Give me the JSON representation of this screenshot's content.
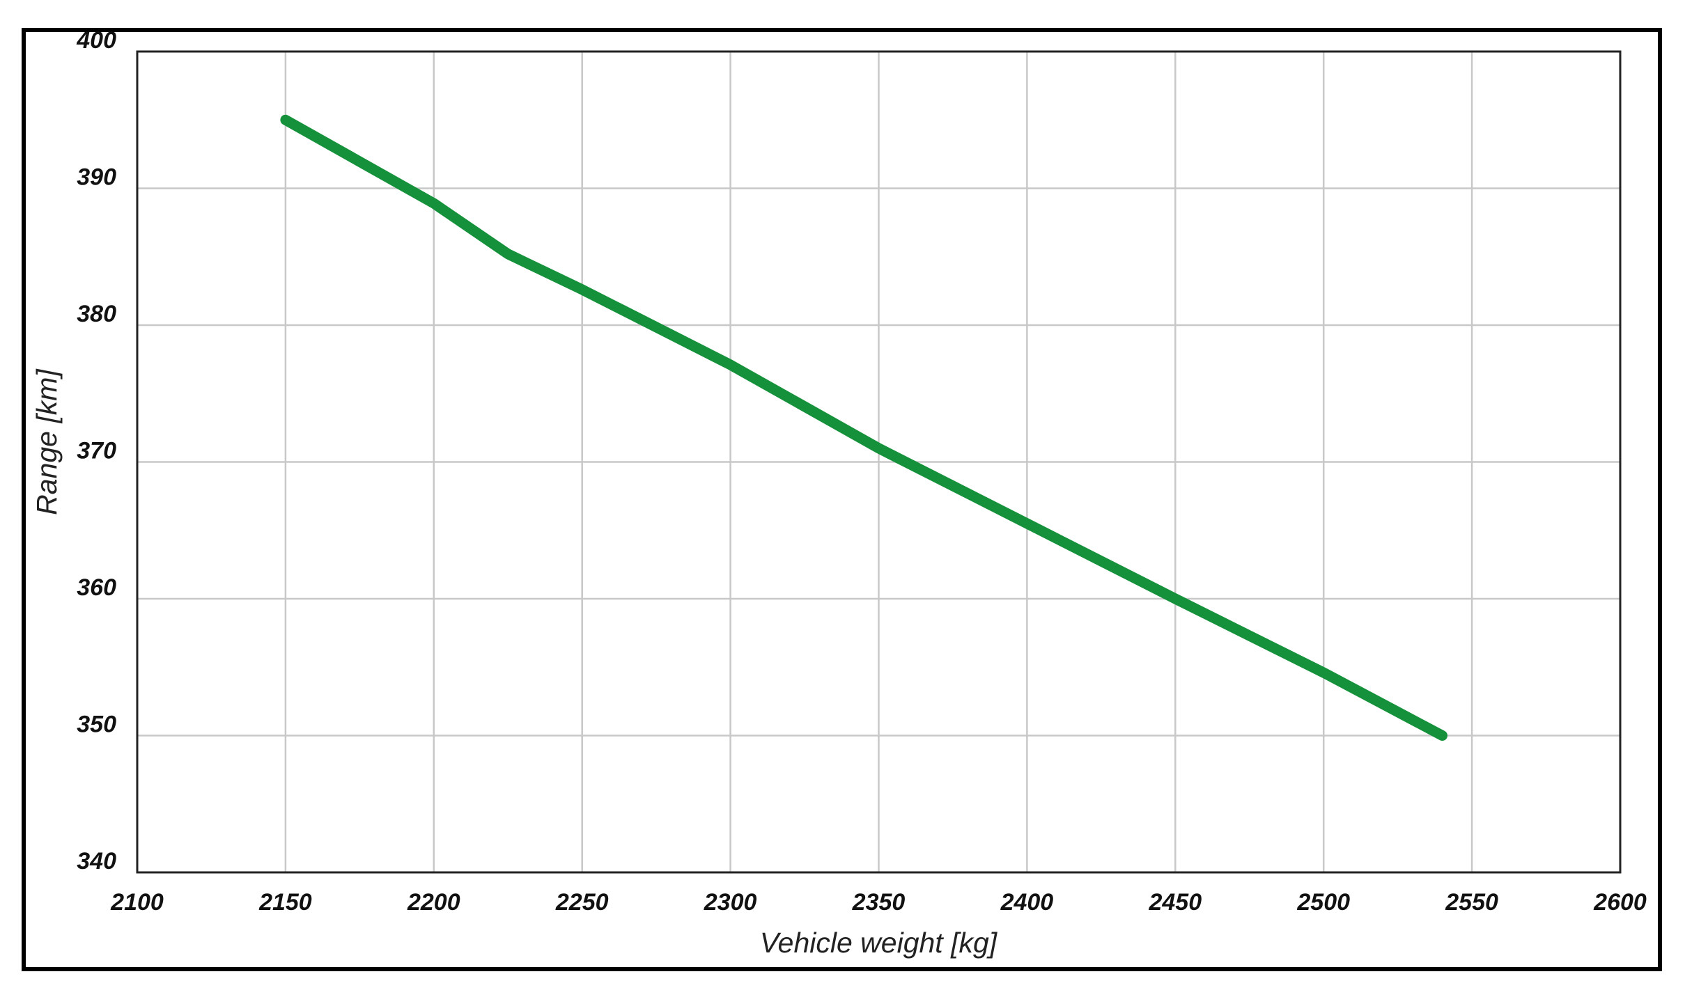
{
  "chart_data": {
    "type": "line",
    "x_label": "Vehicle weight [kg]",
    "y_label": "Range [km]",
    "x": [
      2150,
      2200,
      2225,
      2250,
      2300,
      2350,
      2400,
      2450,
      2500,
      2540
    ],
    "series": [
      {
        "color": "#14913a",
        "values": [
          395,
          388.9,
          385.2,
          382.6,
          377.1,
          371,
          365.5,
          360,
          354.6,
          350
        ]
      }
    ],
    "xlim": [
      2100,
      2600
    ],
    "xticks": [
      2100,
      2150,
      2200,
      2250,
      2300,
      2350,
      2400,
      2450,
      2500,
      2550,
      2600
    ],
    "ylim": [
      340,
      400
    ],
    "yticks": [
      340,
      350,
      360,
      370,
      380,
      390,
      400
    ],
    "grid": true
  }
}
